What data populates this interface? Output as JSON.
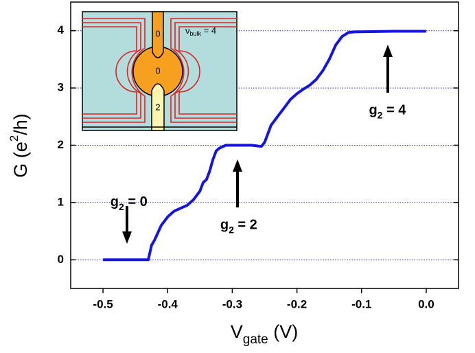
{
  "chart_data": {
    "type": "line",
    "x_label": {
      "main": "V",
      "sub": "gate",
      "rest": " (V)"
    },
    "y_label": {
      "main": "G (e",
      "sup": "2",
      "rest": "/h)"
    },
    "x": [
      -0.5,
      -0.43,
      -0.425,
      -0.42,
      -0.41,
      -0.4,
      -0.39,
      -0.38,
      -0.37,
      -0.36,
      -0.35,
      -0.345,
      -0.34,
      -0.335,
      -0.33,
      -0.325,
      -0.32,
      -0.31,
      -0.29,
      -0.27,
      -0.255,
      -0.25,
      -0.245,
      -0.24,
      -0.23,
      -0.22,
      -0.21,
      -0.2,
      -0.19,
      -0.18,
      -0.17,
      -0.16,
      -0.15,
      -0.14,
      -0.13,
      -0.12,
      -0.11,
      -0.05,
      0.0
    ],
    "series": [
      {
        "color": "#1515e0",
        "values": [
          0,
          0,
          0.25,
          0.35,
          0.6,
          0.75,
          0.85,
          0.9,
          0.95,
          1.05,
          1.2,
          1.35,
          1.4,
          1.55,
          1.75,
          1.9,
          1.95,
          2.0,
          2.0,
          2.0,
          1.98,
          2.05,
          2.2,
          2.35,
          2.5,
          2.65,
          2.8,
          2.9,
          2.98,
          3.05,
          3.15,
          3.3,
          3.5,
          3.75,
          3.9,
          3.97,
          3.98,
          3.99,
          3.99
        ]
      }
    ],
    "xlim": [
      -0.55,
      0.05
    ],
    "ylim": [
      -0.5,
      4.5
    ],
    "xticks": [
      -0.5,
      -0.4,
      -0.3,
      -0.2,
      -0.1,
      {
        "value": 0,
        "label": "0.0"
      }
    ],
    "yticks": [
      0,
      1,
      2,
      3,
      4
    ],
    "grid": true,
    "grid_color": "#2a2aa0",
    "annotations": [
      {
        "main": "g",
        "sub": "2",
        "rest": " = 0",
        "x": -0.46,
        "y": 1.0
      },
      {
        "main": "g",
        "sub": "2",
        "rest": " = 2",
        "x": -0.29,
        "y": 0.6
      },
      {
        "main": "g",
        "sub": "2",
        "rest": " = 4",
        "x": -0.06,
        "y": 2.6
      }
    ],
    "inset": {
      "labels": [
        "0",
        "0",
        "2"
      ],
      "bulk": {
        "main": "ν",
        "sub": "bulk",
        "rest": " = 4"
      }
    }
  }
}
